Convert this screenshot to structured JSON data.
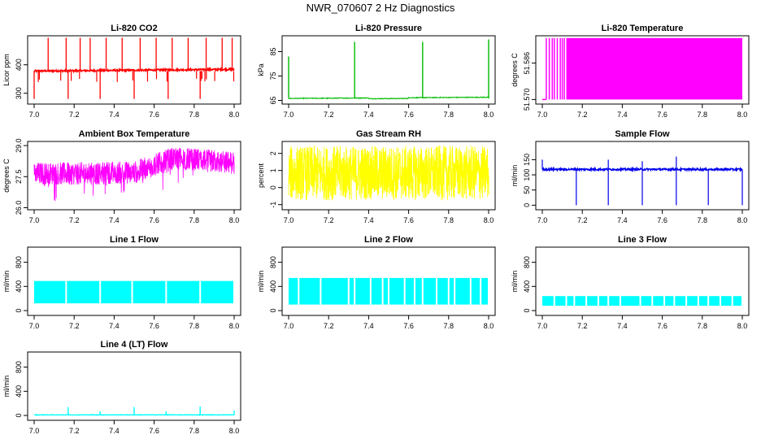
{
  "suptitle": "NWR_070607  2 Hz Diagnostics",
  "colors": {
    "red": "#ff0000",
    "green": "#00bb00",
    "magenta": "#ff00ff",
    "yellow": "#ffff00",
    "blue": "#0000ee",
    "cyan": "#00ffff"
  },
  "chart_data": [
    {
      "id": "p1",
      "type": "line",
      "title": "Li-820 CO2",
      "ylabel": "Licor ppm",
      "color": "#ff0000",
      "xlim": [
        7.0,
        8.0
      ],
      "ylim": [
        262,
        502
      ],
      "x_ticks": [
        7.0,
        7.2,
        7.4,
        7.6,
        7.8,
        8.0
      ],
      "x_tick_labels": [
        "7.0",
        "7.2",
        "7.4",
        "7.6",
        "7.8",
        "8.0"
      ],
      "y_ticks": [
        300,
        400
      ],
      "y_tick_labels": [
        "300",
        "400"
      ],
      "model": {
        "kind": "co2",
        "base": 378,
        "noise": 6,
        "spikes_up": [
          7.07,
          7.16,
          7.23,
          7.28,
          7.36,
          7.44,
          7.53,
          7.61,
          7.69,
          7.77,
          7.86,
          7.94,
          7.99
        ],
        "spikes_down": [
          7.0,
          7.17,
          7.33,
          7.5,
          7.67,
          7.83
        ],
        "up_level": 495,
        "down_level": 280
      }
    },
    {
      "id": "p2",
      "type": "line",
      "title": "Li-820 Pressure",
      "ylabel": "kPa",
      "color": "#00bb00",
      "xlim": [
        7.0,
        8.0
      ],
      "ylim": [
        63.5,
        91.5
      ],
      "x_ticks": [
        7.0,
        7.2,
        7.4,
        7.6,
        7.8,
        8.0
      ],
      "x_tick_labels": [
        "7.0",
        "7.2",
        "7.4",
        "7.6",
        "7.8",
        "8.0"
      ],
      "y_ticks": [
        65,
        75,
        85
      ],
      "y_tick_labels": [
        "65",
        "75",
        "85"
      ],
      "model": {
        "kind": "pressure",
        "base": 65.8,
        "spikes": [
          7.0,
          7.33,
          7.67,
          8.0
        ],
        "spike_levels": [
          83,
          89,
          89,
          90
        ]
      }
    },
    {
      "id": "p3",
      "type": "line",
      "title": "Li-820 Temperature",
      "ylabel": "degrees C",
      "color": "#ff00ff",
      "xlim": [
        7.0,
        8.0
      ],
      "ylim": [
        51.568,
        51.598
      ],
      "x_ticks": [
        7.0,
        7.2,
        7.4,
        7.6,
        7.8,
        8.0
      ],
      "x_tick_labels": [
        "7.0",
        "7.2",
        "7.4",
        "7.6",
        "7.8",
        "8.0"
      ],
      "y_ticks": [
        51.57,
        51.586
      ],
      "y_tick_labels": [
        "51.570",
        "51.586"
      ],
      "model": {
        "kind": "temperature",
        "low": 51.57,
        "high": 51.597,
        "solid_from": 7.12,
        "flicker_lines": [
          7.02,
          7.035,
          7.05,
          7.06,
          7.075,
          7.09,
          7.1,
          7.11
        ]
      }
    },
    {
      "id": "p4",
      "type": "line",
      "title": "Ambient Box Temperature",
      "ylabel": "degrees C",
      "color": "#ff00ff",
      "xlim": [
        7.0,
        8.0
      ],
      "ylim": [
        25.9,
        29.2
      ],
      "x_ticks": [
        7.0,
        7.2,
        7.4,
        7.6,
        7.8,
        8.0
      ],
      "x_tick_labels": [
        "7.0",
        "7.2",
        "7.4",
        "7.6",
        "7.8",
        "8.0"
      ],
      "y_ticks": [
        26.0,
        27.5,
        29.0
      ],
      "y_tick_labels": [
        "26.0",
        "27.5",
        "29.0"
      ],
      "model": {
        "kind": "ambient"
      }
    },
    {
      "id": "p5",
      "type": "line",
      "title": "Gas Stream RH",
      "ylabel": "percent",
      "color": "#ffff00",
      "xlim": [
        7.0,
        8.0
      ],
      "ylim": [
        -1.3,
        2.7
      ],
      "x_ticks": [
        7.0,
        7.2,
        7.4,
        7.6,
        7.8,
        8.0
      ],
      "x_tick_labels": [
        "7.0",
        "7.2",
        "7.4",
        "7.6",
        "7.8",
        "8.0"
      ],
      "y_ticks": [
        -1,
        0,
        1,
        2
      ],
      "y_tick_labels": [
        "-1",
        "0",
        "1",
        "2"
      ],
      "model": {
        "kind": "rh",
        "center": 0.85,
        "amp": 1.6
      }
    },
    {
      "id": "p6",
      "type": "line",
      "title": "Sample Flow",
      "ylabel": "ml/min",
      "color": "#0000ee",
      "xlim": [
        7.0,
        8.0
      ],
      "ylim": [
        -15,
        210
      ],
      "x_ticks": [
        7.0,
        7.2,
        7.4,
        7.6,
        7.8,
        8.0
      ],
      "x_tick_labels": [
        "7.0",
        "7.2",
        "7.4",
        "7.6",
        "7.8",
        "8.0"
      ],
      "y_ticks": [
        0,
        50,
        100,
        150
      ],
      "y_tick_labels": [
        "0",
        "50",
        "100",
        "150"
      ],
      "model": {
        "kind": "flow",
        "base": 118,
        "drops": [
          7.17,
          7.33,
          7.5,
          7.67,
          7.83,
          8.0
        ],
        "spikes": [
          7.0,
          7.33,
          7.5,
          7.67
        ],
        "spike_levels": [
          150,
          150,
          145,
          160
        ]
      }
    },
    {
      "id": "p7",
      "type": "band",
      "title": "Line 1 Flow",
      "ylabel": "ml/min",
      "color": "#00ffff",
      "xlim": [
        7.0,
        8.0
      ],
      "ylim": [
        -80,
        1050
      ],
      "x_ticks": [
        7.0,
        7.2,
        7.4,
        7.6,
        7.8,
        8.0
      ],
      "x_tick_labels": [
        "7.0",
        "7.2",
        "7.4",
        "7.6",
        "7.8",
        "8.0"
      ],
      "y_ticks": [
        0,
        400,
        800
      ],
      "y_tick_labels": [
        "0",
        "400",
        "800"
      ],
      "model": {
        "kind": "band",
        "low": 120,
        "high": 490,
        "breaks": [
          7.16,
          7.33,
          7.49,
          7.66,
          7.83,
          8.0
        ]
      }
    },
    {
      "id": "p8",
      "type": "band",
      "title": "Line 2 Flow",
      "ylabel": "ml/min",
      "color": "#00ffff",
      "xlim": [
        7.0,
        8.0
      ],
      "ylim": [
        -80,
        1050
      ],
      "x_ticks": [
        7.0,
        7.2,
        7.4,
        7.6,
        7.8,
        8.0
      ],
      "x_tick_labels": [
        "7.0",
        "7.2",
        "7.4",
        "7.6",
        "7.8",
        "8.0"
      ],
      "y_ticks": [
        0,
        400,
        800
      ],
      "y_tick_labels": [
        "0",
        "400",
        "800"
      ],
      "model": {
        "kind": "band",
        "low": 100,
        "high": 540,
        "breaks": [
          7.05,
          7.16,
          7.3,
          7.33,
          7.41,
          7.47,
          7.5,
          7.58,
          7.63,
          7.67,
          7.74,
          7.8,
          7.83,
          7.91,
          7.96
        ]
      }
    },
    {
      "id": "p9",
      "type": "band",
      "title": "Line 3 Flow",
      "ylabel": "ml/min",
      "color": "#00ffff",
      "xlim": [
        7.0,
        8.0
      ],
      "ylim": [
        -80,
        1050
      ],
      "x_ticks": [
        7.0,
        7.2,
        7.4,
        7.6,
        7.8,
        8.0
      ],
      "x_tick_labels": [
        "7.0",
        "7.2",
        "7.4",
        "7.6",
        "7.8",
        "8.0"
      ],
      "y_ticks": [
        0,
        400,
        800
      ],
      "y_tick_labels": [
        "0",
        "400",
        "800"
      ],
      "model": {
        "kind": "band",
        "low": 80,
        "high": 240,
        "breaks": [
          7.06,
          7.12,
          7.16,
          7.22,
          7.28,
          7.33,
          7.39,
          7.49,
          7.55,
          7.61,
          7.66,
          7.72,
          7.78,
          7.83,
          7.89,
          7.95
        ]
      }
    },
    {
      "id": "p10",
      "type": "line",
      "title": "Line 4 (LT) Flow",
      "ylabel": "ml/min",
      "color": "#00ffff",
      "xlim": [
        7.0,
        8.0
      ],
      "ylim": [
        -80,
        1050
      ],
      "x_ticks": [
        7.0,
        7.2,
        7.4,
        7.6,
        7.8,
        8.0
      ],
      "x_tick_labels": [
        "7.0",
        "7.2",
        "7.4",
        "7.6",
        "7.8",
        "8.0"
      ],
      "y_ticks": [
        0,
        400,
        800
      ],
      "y_tick_labels": [
        "0",
        "400",
        "800"
      ],
      "model": {
        "kind": "baseline",
        "base": 10,
        "spikes": [
          7.17,
          7.33,
          7.5,
          7.66,
          7.83,
          8.0
        ],
        "spike_levels": [
          140,
          70,
          140,
          70,
          150,
          80
        ]
      }
    }
  ]
}
